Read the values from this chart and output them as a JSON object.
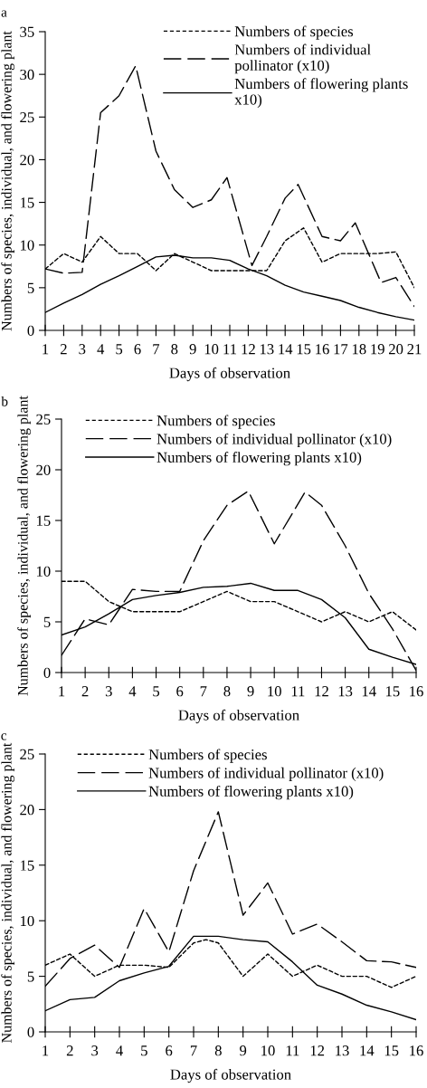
{
  "chart_data": [
    {
      "type": "line",
      "title": "a",
      "xlabel": "Days of observation",
      "ylabel": "Numbers of species, individual, and flowering plant",
      "xlim": [
        1,
        21
      ],
      "xticks": [
        1,
        2,
        3,
        4,
        5,
        6,
        7,
        8,
        9,
        10,
        11,
        12,
        13,
        14,
        15,
        16,
        17,
        18,
        19,
        20,
        21
      ],
      "ylim": [
        0,
        35
      ],
      "yticks": [
        0,
        5,
        10,
        15,
        20,
        25,
        30,
        35
      ],
      "grid": false,
      "legend": "top right",
      "marker": "none",
      "series": [
        {
          "name": "Numbers of species",
          "color": "#000000",
          "line_style": "dotted",
          "x": [
            1,
            2,
            3,
            4,
            5,
            6,
            7,
            8,
            9,
            10,
            11,
            12,
            13,
            14,
            15,
            16,
            17,
            18,
            19,
            20,
            21
          ],
          "values": [
            7.2,
            9,
            8,
            11,
            9,
            9,
            7,
            9,
            8,
            7,
            7,
            7,
            7,
            10.5,
            12,
            8,
            9,
            9,
            9,
            9.2,
            5
          ]
        },
        {
          "name": "Numbers of individual\npollinator (x10)",
          "color": "#000000",
          "line_style": "dashed",
          "x": [
            1,
            2,
            3,
            4,
            5,
            5.9,
            7,
            8,
            9,
            10,
            10.85,
            12.2,
            13,
            14,
            14.7,
            16,
            17,
            17.8,
            19.2,
            20,
            21
          ],
          "values": [
            7.2,
            6.7,
            6.8,
            25.5,
            27.5,
            31,
            21,
            16.5,
            14.4,
            15.3,
            17.9,
            7.6,
            11,
            15.5,
            17.1,
            11,
            10.5,
            12.6,
            5.6,
            6.2,
            2.8
          ]
        },
        {
          "name": "Numbers of flowering plants\nx10)",
          "color": "#000000",
          "line_style": "solid",
          "x": [
            1,
            2,
            3,
            4,
            5,
            6,
            7,
            8,
            9,
            10,
            11,
            12,
            13,
            14,
            15,
            16,
            17,
            18,
            19,
            20,
            21
          ],
          "values": [
            2.1,
            3.2,
            4.2,
            5.4,
            6.4,
            7.5,
            8.6,
            8.8,
            8.5,
            8.5,
            8.2,
            7.2,
            6.4,
            5.3,
            4.5,
            4.0,
            3.5,
            2.7,
            2.1,
            1.6,
            1.2
          ]
        }
      ]
    },
    {
      "type": "line",
      "title": "b",
      "xlabel": "Days of observation",
      "ylabel": "Numbers of species, individual, and flowering plant",
      "xlim": [
        1,
        16
      ],
      "xticks": [
        1,
        2,
        3,
        4,
        5,
        6,
        7,
        8,
        9,
        10,
        11,
        12,
        13,
        14,
        15,
        16
      ],
      "ylim": [
        0,
        25
      ],
      "yticks": [
        0,
        5,
        10,
        15,
        20,
        25
      ],
      "grid": false,
      "legend": "top",
      "marker": "none",
      "series": [
        {
          "name": "Numbers of species",
          "color": "#000000",
          "line_style": "dotted",
          "x": [
            1,
            2,
            3,
            4,
            5,
            6,
            7,
            8,
            9,
            10,
            11,
            12,
            13,
            14,
            15,
            16
          ],
          "values": [
            9,
            9,
            7,
            6,
            6,
            6,
            7,
            8,
            7,
            7,
            6,
            5,
            6,
            5,
            6,
            4.2
          ]
        },
        {
          "name": "Numbers of individual pollinator (x10)",
          "color": "#000000",
          "line_style": "dashed",
          "x": [
            1,
            2,
            3,
            4,
            5,
            6,
            7,
            8,
            8.9,
            10,
            11.3,
            12,
            13,
            14,
            15,
            16
          ],
          "values": [
            1.7,
            5.3,
            4.7,
            8.2,
            8,
            8,
            13,
            16.5,
            17.9,
            12.7,
            17.8,
            16.5,
            12.5,
            7.8,
            4.3,
            0.2
          ]
        },
        {
          "name": "Numbers of flowering plants x10)",
          "color": "#000000",
          "line_style": "solid",
          "x": [
            1,
            2,
            3,
            4,
            5,
            6,
            7,
            8,
            9,
            10,
            11,
            12,
            13,
            14,
            15,
            16
          ],
          "values": [
            3.7,
            4.5,
            5.8,
            7.2,
            7.6,
            7.9,
            8.4,
            8.5,
            8.8,
            8.1,
            8.1,
            7.2,
            5.4,
            2.3,
            1.5,
            0.8
          ]
        }
      ]
    },
    {
      "type": "line",
      "title": "c",
      "xlabel": "Days of observation",
      "ylabel": "Numbers of species, individual, and flowering plant",
      "xlim": [
        1,
        16
      ],
      "xticks": [
        1,
        2,
        3,
        4,
        5,
        6,
        7,
        8,
        9,
        10,
        11,
        12,
        13,
        14,
        15,
        16
      ],
      "ylim": [
        0,
        25
      ],
      "yticks": [
        0,
        5,
        10,
        15,
        20,
        25
      ],
      "grid": false,
      "legend": "top",
      "marker": "none",
      "series": [
        {
          "name": "Numbers of species",
          "color": "#000000",
          "line_style": "dotted",
          "x": [
            1,
            2,
            3,
            4,
            5,
            6,
            7,
            7.5,
            8,
            9,
            10,
            11,
            12,
            13,
            14,
            15,
            16
          ],
          "values": [
            6,
            7,
            5,
            6,
            6,
            5.8,
            8,
            8.3,
            8,
            5,
            7,
            5,
            6,
            5,
            5,
            4,
            5
          ]
        },
        {
          "name": "Numbers of individual pollinator (x10)",
          "color": "#000000",
          "line_style": "dashed",
          "x": [
            1,
            2,
            3,
            4,
            5,
            6,
            7,
            8,
            9,
            10,
            11,
            12,
            13,
            14,
            15,
            16
          ],
          "values": [
            4.1,
            6.6,
            7.8,
            5.8,
            11.1,
            7.2,
            14.5,
            19.8,
            10.5,
            13.4,
            8.8,
            9.7,
            8.1,
            6.4,
            6.3,
            5.8
          ]
        },
        {
          "name": "Numbers of flowering plants x10)",
          "color": "#000000",
          "line_style": "solid",
          "x": [
            1,
            2,
            3,
            4,
            5,
            6,
            7,
            8,
            9,
            10,
            11,
            12,
            13,
            14,
            15,
            16
          ],
          "values": [
            1.9,
            2.9,
            3.1,
            4.6,
            5.3,
            5.9,
            8.6,
            8.6,
            8.3,
            8.1,
            6.3,
            4.2,
            3.4,
            2.4,
            1.8,
            1.1
          ]
        }
      ]
    }
  ]
}
